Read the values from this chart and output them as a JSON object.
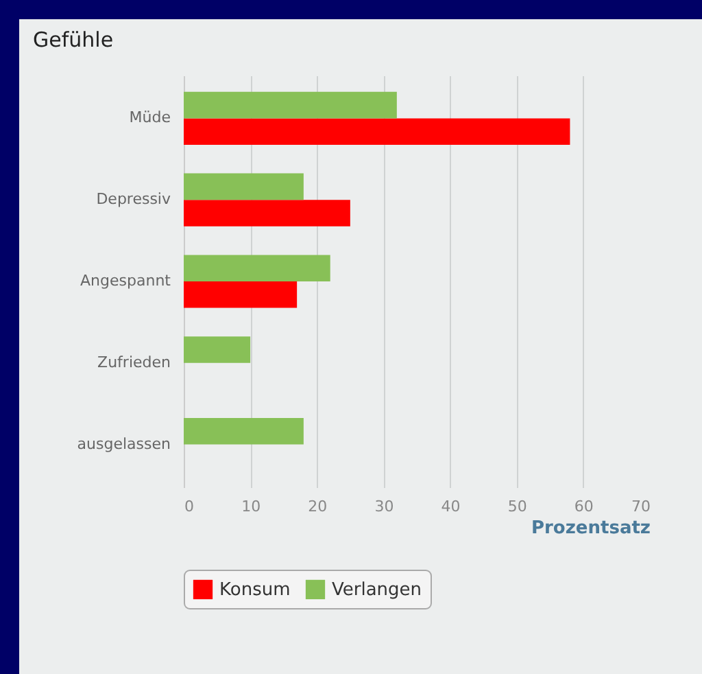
{
  "chart_data": {
    "type": "bar",
    "orientation": "horizontal",
    "title": "Gefühle",
    "xlabel": "Prozentsatz",
    "categories": [
      "Müde",
      "Depressiv",
      "Angespannt",
      "Zufrieden",
      "ausgelassen"
    ],
    "series": [
      {
        "name": "Konsum",
        "color": "#ff0000",
        "values": [
          58,
          25,
          17,
          0,
          0
        ]
      },
      {
        "name": "Verlangen",
        "color": "#88c057",
        "values": [
          32,
          18,
          22,
          10,
          18
        ]
      }
    ],
    "xlim": [
      0,
      70
    ],
    "xticks": [
      0,
      10,
      20,
      30,
      40,
      50,
      60,
      70
    ],
    "grid": "x",
    "legend": "bottom"
  }
}
